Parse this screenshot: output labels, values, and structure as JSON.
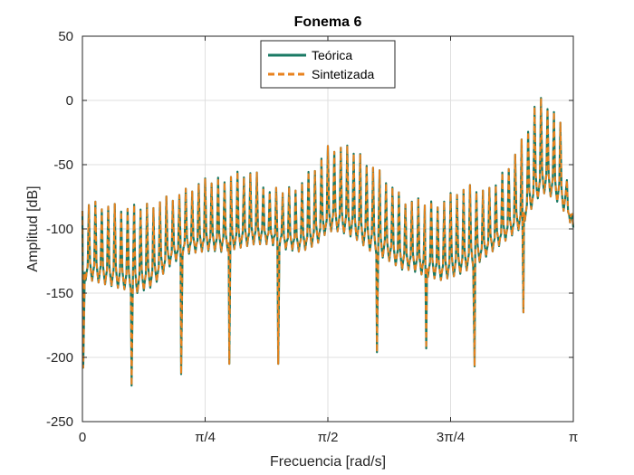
{
  "chart_data": {
    "type": "line",
    "title": "Fonema 6",
    "xlabel": "Frecuencia [rad/s]",
    "ylabel": "Amplitud [dB]",
    "xlim": [
      0,
      3.14159
    ],
    "ylim": [
      -250,
      50
    ],
    "grid": true,
    "legend_position": "top-center",
    "x_ticks": [
      {
        "value": 0,
        "label": "0"
      },
      {
        "value": 0.7854,
        "label": "π/4"
      },
      {
        "value": 1.5708,
        "label": "π/2"
      },
      {
        "value": 2.3562,
        "label": "3π/4"
      },
      {
        "value": 3.14159,
        "label": "π"
      }
    ],
    "y_ticks": [
      {
        "value": 50,
        "label": "50"
      },
      {
        "value": 0,
        "label": "0"
      },
      {
        "value": -50,
        "label": "-50"
      },
      {
        "value": -100,
        "label": "-100"
      },
      {
        "value": -150,
        "label": "-150"
      },
      {
        "value": -200,
        "label": "-200"
      },
      {
        "value": -250,
        "label": "-250"
      }
    ],
    "harmonic_count": 76,
    "envelope": {
      "x": [
        0,
        0.05,
        0.2,
        0.3,
        0.35,
        0.45,
        0.55,
        0.65,
        0.75,
        0.82,
        0.9,
        1.0,
        1.1,
        1.2,
        1.3,
        1.4,
        1.5,
        1.57,
        1.65,
        1.75,
        1.85,
        1.95,
        2.05,
        2.1,
        2.2,
        2.3,
        2.4,
        2.5,
        2.6,
        2.7,
        2.8,
        2.85,
        2.9,
        2.95,
        3.0,
        3.05,
        3.1,
        3.14159
      ],
      "peaks": [
        -82,
        -80,
        -83,
        -85,
        -84,
        -80,
        -76,
        -72,
        -65,
        -63,
        -60,
        -57,
        -56,
        -72,
        -70,
        -64,
        -50,
        -38,
        -37,
        -40,
        -50,
        -62,
        -78,
        -79,
        -80,
        -79,
        -70,
        -68,
        -72,
        -55,
        -35,
        -22,
        -2,
        0,
        -8,
        -12,
        -60,
        -100
      ],
      "floors": [
        -140,
        -140,
        -145,
        -148,
        -150,
        -145,
        -130,
        -120,
        -118,
        -117,
        -118,
        -115,
        -112,
        -112,
        -116,
        -118,
        -112,
        -102,
        -102,
        -108,
        -118,
        -124,
        -132,
        -132,
        -137,
        -140,
        -136,
        -130,
        -120,
        -110,
        -100,
        -90,
        -78,
        -72,
        -75,
        -80,
        -90,
        -100
      ]
    },
    "notches": [
      {
        "x": 0.005,
        "y": -208
      },
      {
        "x": 0.315,
        "y": -222
      },
      {
        "x": 0.632,
        "y": -213
      },
      {
        "x": 0.94,
        "y": -205
      },
      {
        "x": 1.253,
        "y": -205
      },
      {
        "x": 1.885,
        "y": -196
      },
      {
        "x": 2.2,
        "y": -193
      },
      {
        "x": 2.51,
        "y": -207
      },
      {
        "x": 2.822,
        "y": -165
      }
    ],
    "series": [
      {
        "name": "Teórica",
        "color": "#1a7a64",
        "dash": "solid"
      },
      {
        "name": "Sintetizada",
        "color": "#e8821e",
        "dash": "dashed"
      }
    ]
  }
}
